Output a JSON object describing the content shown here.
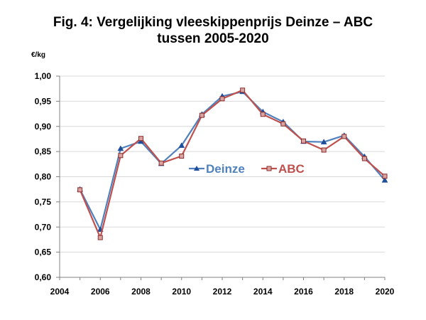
{
  "chart_data": {
    "type": "line",
    "title_line1": "Fig. 4: Vergelijking vleeskippenprijs Deinze – ABC",
    "title_line2": "tussen 2005-2020",
    "ylabel": "€/kg",
    "xlim": [
      2004,
      2020
    ],
    "ylim": [
      0.6,
      1.0
    ],
    "x_ticks": [
      "2004",
      "2006",
      "2008",
      "2010",
      "2012",
      "2014",
      "2016",
      "2018",
      "2020"
    ],
    "y_ticks": [
      "0,60",
      "0,65",
      "0,70",
      "0,75",
      "0,80",
      "0,85",
      "0,90",
      "0,95",
      "1,00"
    ],
    "grid": true,
    "legend_position": "center",
    "x": [
      2005,
      2006,
      2007,
      2008,
      2009,
      2010,
      2011,
      2012,
      2013,
      2014,
      2015,
      2016,
      2017,
      2018,
      2019,
      2020
    ],
    "series": [
      {
        "name": "Deinze",
        "color": "#4F81BD",
        "marker_color": "#1F4E9A",
        "marker": "triangle",
        "values": [
          0.775,
          0.695,
          0.856,
          0.87,
          0.826,
          0.862,
          0.924,
          0.96,
          0.969,
          0.929,
          0.909,
          0.87,
          0.869,
          0.882,
          0.84,
          0.793
        ]
      },
      {
        "name": "ABC",
        "color": "#C0504D",
        "marker_color": "#8B2C2A",
        "marker": "square",
        "values": [
          0.774,
          0.679,
          0.842,
          0.876,
          0.827,
          0.841,
          0.922,
          0.955,
          0.972,
          0.924,
          0.905,
          0.871,
          0.853,
          0.88,
          0.836,
          0.801
        ]
      }
    ]
  }
}
